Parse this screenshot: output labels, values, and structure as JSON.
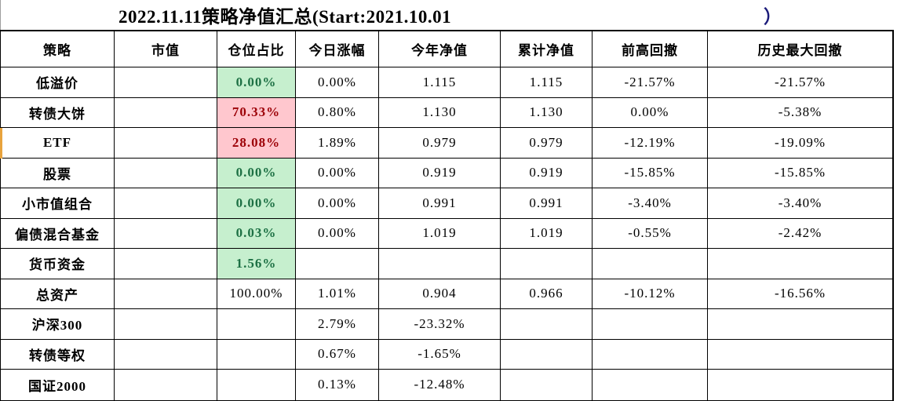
{
  "title": {
    "text": "2022.11.11策略净值汇总(Start:2021.10.01",
    "closing_paren": "）"
  },
  "table": {
    "columns": [
      "策略",
      "市值",
      "仓位占比",
      "今日涨幅",
      "今年净值",
      "累计净值",
      "前高回撤",
      "历史最大回撤"
    ],
    "rows": [
      {
        "strategy": "低溢价",
        "market_value": "",
        "position_ratio": "0.00%",
        "fill": "green",
        "today_change": "0.00%",
        "ytd_nav": "1.115",
        "cumulative_nav": "1.115",
        "drawdown_from_prev_high": "-21.57%",
        "max_drawdown": "-21.57%"
      },
      {
        "strategy": "转债大饼",
        "market_value": "",
        "position_ratio": "70.33%",
        "fill": "red",
        "today_change": "0.80%",
        "ytd_nav": "1.130",
        "cumulative_nav": "1.130",
        "drawdown_from_prev_high": "0.00%",
        "max_drawdown": "-5.38%"
      },
      {
        "strategy": "ETF",
        "market_value": "",
        "position_ratio": "28.08%",
        "fill": "red",
        "today_change": "1.89%",
        "ytd_nav": "0.979",
        "cumulative_nav": "0.979",
        "drawdown_from_prev_high": "-12.19%",
        "max_drawdown": "-19.09%"
      },
      {
        "strategy": "股票",
        "market_value": "",
        "position_ratio": "0.00%",
        "fill": "green",
        "today_change": "0.00%",
        "ytd_nav": "0.919",
        "cumulative_nav": "0.919",
        "drawdown_from_prev_high": "-15.85%",
        "max_drawdown": "-15.85%"
      },
      {
        "strategy": "小市值组合",
        "market_value": "",
        "position_ratio": "0.00%",
        "fill": "green",
        "today_change": "0.00%",
        "ytd_nav": "0.991",
        "cumulative_nav": "0.991",
        "drawdown_from_prev_high": "-3.40%",
        "max_drawdown": "-3.40%"
      },
      {
        "strategy": "偏债混合基金",
        "market_value": "",
        "position_ratio": "0.03%",
        "fill": "green",
        "today_change": "0.00%",
        "ytd_nav": "1.019",
        "cumulative_nav": "1.019",
        "drawdown_from_prev_high": "-0.55%",
        "max_drawdown": "-2.42%"
      },
      {
        "strategy": "货币资金",
        "market_value": "",
        "position_ratio": "1.56%",
        "fill": "green",
        "today_change": "",
        "ytd_nav": "",
        "cumulative_nav": "",
        "drawdown_from_prev_high": "",
        "max_drawdown": ""
      },
      {
        "strategy": "总资产",
        "market_value": "",
        "position_ratio": "100.00%",
        "fill": "none",
        "today_change": "1.01%",
        "ytd_nav": "0.904",
        "cumulative_nav": "0.966",
        "drawdown_from_prev_high": "-10.12%",
        "max_drawdown": "-16.56%"
      },
      {
        "strategy": "沪深300",
        "market_value": "",
        "position_ratio": "",
        "fill": "none",
        "today_change": "2.79%",
        "ytd_nav": "-23.32%",
        "cumulative_nav": "",
        "drawdown_from_prev_high": "",
        "max_drawdown": ""
      },
      {
        "strategy": "转债等权",
        "market_value": "",
        "position_ratio": "",
        "fill": "none",
        "today_change": "0.67%",
        "ytd_nav": "-1.65%",
        "cumulative_nav": "",
        "drawdown_from_prev_high": "",
        "max_drawdown": ""
      },
      {
        "strategy": "国证2000",
        "market_value": "",
        "position_ratio": "",
        "fill": "none",
        "today_change": "0.13%",
        "ytd_nav": "-12.48%",
        "cumulative_nav": "",
        "drawdown_from_prev_high": "",
        "max_drawdown": ""
      }
    ],
    "highlighted_row": "ETF"
  },
  "colors": {
    "green_fill_bg": "#C6EFCE",
    "green_fill_text": "#1d7044",
    "red_fill_bg": "#FFC7CE",
    "red_fill_text": "#9C0006",
    "grid_border": "#000000",
    "highlight_marker": "#E8A33D",
    "closing_paren_color": "#1b1b7a"
  }
}
